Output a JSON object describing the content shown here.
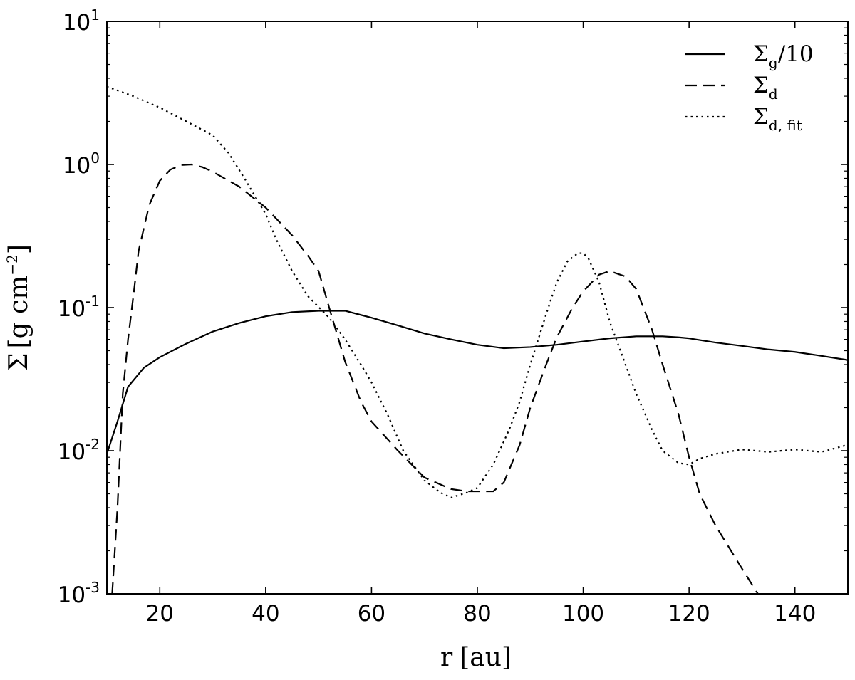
{
  "chart_data": {
    "type": "line",
    "title": "",
    "xlabel": "r [au]",
    "ylabel": "Σ [g cm⁻²]",
    "xlabel_parts": {
      "sym": "r",
      "unit": "au"
    },
    "ylabel_parts": {
      "sym": "Σ",
      "unit": "g cm",
      "exp": "−2"
    },
    "xlim": [
      10,
      150
    ],
    "ylim": [
      0.001,
      10
    ],
    "yscale": "log",
    "grid": false,
    "legend_position": "top-right",
    "xticks": [
      20,
      40,
      60,
      80,
      100,
      120,
      140
    ],
    "yticks": [
      {
        "value": 0.001,
        "base": "10",
        "exp": "-3"
      },
      {
        "value": 0.01,
        "base": "10",
        "exp": "-2"
      },
      {
        "value": 0.1,
        "base": "10",
        "exp": "-1"
      },
      {
        "value": 1,
        "base": "10",
        "exp": "0"
      },
      {
        "value": 10,
        "base": "10",
        "exp": "1"
      }
    ],
    "series": [
      {
        "name": "Σ_g/10",
        "legend": {
          "sym": "Σ",
          "sub": "g",
          "suffix": "/10"
        },
        "style": "solid",
        "x": [
          10,
          12,
          14,
          17,
          20,
          25,
          30,
          35,
          40,
          45,
          50,
          55,
          60,
          65,
          70,
          75,
          80,
          85,
          90,
          95,
          100,
          105,
          110,
          115,
          118,
          120,
          125,
          130,
          135,
          140,
          145,
          150
        ],
        "y": [
          0.0095,
          0.016,
          0.028,
          0.038,
          0.045,
          0.056,
          0.068,
          0.078,
          0.087,
          0.093,
          0.095,
          0.095,
          0.085,
          0.075,
          0.066,
          0.06,
          0.055,
          0.052,
          0.053,
          0.055,
          0.058,
          0.061,
          0.063,
          0.063,
          0.062,
          0.061,
          0.057,
          0.054,
          0.051,
          0.049,
          0.046,
          0.043
        ]
      },
      {
        "name": "Σ_d",
        "legend": {
          "sym": "Σ",
          "sub": "d",
          "suffix": ""
        },
        "style": "dashed",
        "x": [
          11,
          12,
          13,
          14,
          15,
          16,
          18,
          20,
          22,
          24,
          26,
          28,
          30,
          35,
          40,
          45,
          48,
          50,
          52,
          55,
          58,
          60,
          65,
          70,
          75,
          78,
          80,
          83,
          85,
          88,
          90,
          93,
          95,
          98,
          100,
          103,
          105,
          108,
          110,
          113,
          115,
          118,
          120,
          122,
          125,
          130,
          133,
          134
        ],
        "y": [
          0.001,
          0.004,
          0.025,
          0.06,
          0.12,
          0.25,
          0.52,
          0.77,
          0.92,
          0.99,
          1.0,
          0.96,
          0.89,
          0.7,
          0.5,
          0.32,
          0.23,
          0.18,
          0.1,
          0.042,
          0.022,
          0.016,
          0.01,
          0.0065,
          0.0054,
          0.0052,
          0.0052,
          0.0052,
          0.006,
          0.011,
          0.02,
          0.04,
          0.062,
          0.1,
          0.13,
          0.17,
          0.18,
          0.165,
          0.135,
          0.07,
          0.04,
          0.018,
          0.009,
          0.005,
          0.003,
          0.0015,
          0.001,
          0.0009
        ]
      },
      {
        "name": "Σ_d,fit",
        "legend": {
          "sym": "Σ",
          "sub": "d, fit",
          "suffix": ""
        },
        "style": "dotted",
        "x": [
          10,
          15,
          20,
          25,
          30,
          33,
          36,
          40,
          42,
          45,
          48,
          52,
          55,
          58,
          60,
          63,
          66,
          70,
          73,
          75,
          78,
          80,
          83,
          86,
          88,
          90,
          93,
          95,
          97,
          99,
          100,
          101,
          103,
          105,
          108,
          110,
          113,
          115,
          118,
          120,
          122,
          125,
          130,
          135,
          140,
          145,
          150
        ],
        "y": [
          3.5,
          3.0,
          2.5,
          2.0,
          1.6,
          1.2,
          0.8,
          0.45,
          0.3,
          0.18,
          0.12,
          0.085,
          0.06,
          0.04,
          0.03,
          0.018,
          0.01,
          0.0062,
          0.0051,
          0.0047,
          0.0051,
          0.0055,
          0.008,
          0.014,
          0.022,
          0.04,
          0.09,
          0.15,
          0.21,
          0.24,
          0.24,
          0.22,
          0.15,
          0.08,
          0.04,
          0.025,
          0.014,
          0.01,
          0.0082,
          0.008,
          0.0088,
          0.0095,
          0.0102,
          0.0098,
          0.0102,
          0.0098,
          0.011
        ]
      }
    ]
  }
}
